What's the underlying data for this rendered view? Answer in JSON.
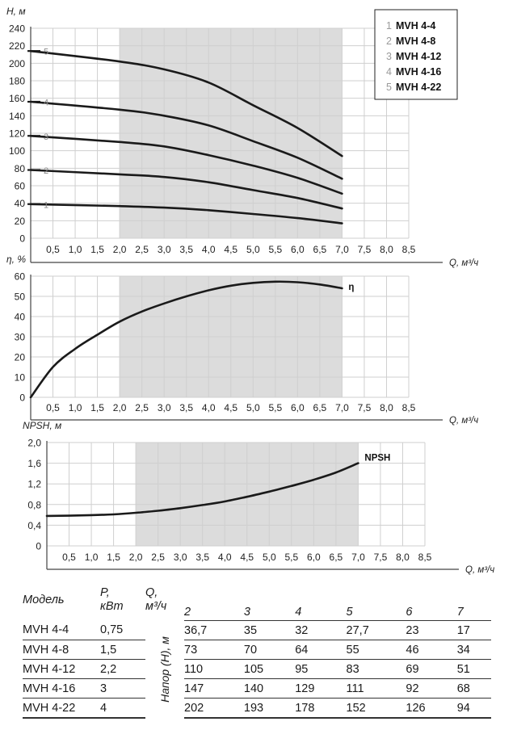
{
  "legend": [
    {
      "num": "1",
      "label": "MVH 4-4"
    },
    {
      "num": "2",
      "label": "MVH 4-8"
    },
    {
      "num": "3",
      "label": "MVH 4-12"
    },
    {
      "num": "4",
      "label": "MVH 4-16"
    },
    {
      "num": "5",
      "label": "MVH 4-22"
    }
  ],
  "chart_data": [
    {
      "type": "line",
      "ylabel": "H, м",
      "xlabel": "Q, м³/ч",
      "xlim": [
        0,
        8.5
      ],
      "ylim": [
        0,
        240
      ],
      "x_ticks": [
        "0,5",
        "1,0",
        "1,5",
        "2,0",
        "2,5",
        "3,0",
        "3,5",
        "4,0",
        "4,5",
        "5,0",
        "5,5",
        "6,0",
        "6,5",
        "7,0",
        "7,5",
        "8,0",
        "8,5"
      ],
      "y_ticks": [
        "0",
        "20",
        "40",
        "60",
        "80",
        "100",
        "120",
        "140",
        "160",
        "180",
        "200",
        "220",
        "240"
      ],
      "shaded_range": [
        2,
        7
      ],
      "grid": true,
      "series": [
        {
          "name": "1",
          "x": [
            0,
            2,
            3,
            4,
            5,
            6,
            7
          ],
          "values": [
            39,
            36.7,
            35,
            32,
            27.7,
            23,
            17
          ]
        },
        {
          "name": "2",
          "x": [
            0,
            2,
            3,
            4,
            5,
            6,
            7
          ],
          "values": [
            78,
            73,
            70,
            64,
            55,
            46,
            34
          ]
        },
        {
          "name": "3",
          "x": [
            0,
            2,
            3,
            4,
            5,
            6,
            7
          ],
          "values": [
            117,
            110,
            105,
            95,
            83,
            69,
            51
          ]
        },
        {
          "name": "4",
          "x": [
            0,
            2,
            3,
            4,
            5,
            6,
            7
          ],
          "values": [
            156,
            147,
            140,
            129,
            111,
            92,
            68
          ]
        },
        {
          "name": "5",
          "x": [
            0,
            2,
            3,
            4,
            5,
            6,
            7
          ],
          "values": [
            214,
            202,
            193,
            178,
            152,
            126,
            94
          ]
        }
      ]
    },
    {
      "type": "line",
      "ylabel": "η, %",
      "xlabel": "Q, м³/ч",
      "xlim": [
        0,
        8.5
      ],
      "ylim": [
        0,
        60
      ],
      "x_ticks": [
        "0,5",
        "1,0",
        "1,5",
        "2,0",
        "2,5",
        "3,0",
        "3,5",
        "4,0",
        "4,5",
        "5,0",
        "5,5",
        "6,0",
        "6,5",
        "7,0",
        "7,5",
        "8,0",
        "8,5"
      ],
      "y_ticks": [
        "0",
        "10",
        "20",
        "30",
        "40",
        "50",
        "60"
      ],
      "shaded_range": [
        2,
        7
      ],
      "grid": true,
      "series": [
        {
          "name": "η",
          "x": [
            0,
            0.5,
            1,
            1.5,
            2,
            2.5,
            3,
            3.5,
            4,
            4.5,
            5,
            5.5,
            6,
            6.5,
            7
          ],
          "values": [
            0,
            15,
            24,
            31,
            37.5,
            42.5,
            46.5,
            50,
            53,
            55.3,
            56.7,
            57.3,
            57,
            55.9,
            54
          ]
        }
      ]
    },
    {
      "type": "line",
      "ylabel": "NPSH, м",
      "xlabel": "Q, м³/ч",
      "xlim": [
        0,
        8.5
      ],
      "ylim": [
        0,
        2.0
      ],
      "x_ticks": [
        "0,5",
        "1,0",
        "1,5",
        "2,0",
        "2,5",
        "3,0",
        "3,5",
        "4,0",
        "4,5",
        "5,0",
        "5,5",
        "6,0",
        "6,5",
        "7,0",
        "7,5",
        "8,0",
        "8,5"
      ],
      "y_ticks": [
        "0",
        "0,4",
        "0,8",
        "1,2",
        "1,6",
        "2,0"
      ],
      "shaded_range": [
        2,
        7
      ],
      "grid": true,
      "series": [
        {
          "name": "NPSH",
          "x": [
            0,
            0.5,
            1,
            1.5,
            2,
            2.5,
            3,
            3.5,
            4,
            4.5,
            5,
            5.5,
            6,
            6.5,
            7
          ],
          "values": [
            0.58,
            0.585,
            0.595,
            0.61,
            0.64,
            0.68,
            0.73,
            0.79,
            0.86,
            0.95,
            1.05,
            1.16,
            1.28,
            1.42,
            1.6
          ]
        }
      ]
    }
  ],
  "table": {
    "headers": {
      "model": "Модель",
      "power": "P,",
      "power_unit": "кВт",
      "flow": "Q,",
      "flow_unit": "м³/ч",
      "head_caption": "Напор (H), м"
    },
    "flow_columns": [
      "2",
      "3",
      "4",
      "5",
      "6",
      "7"
    ],
    "rows": [
      {
        "model": "MVH 4-4",
        "power": "0,75",
        "values": [
          "36,7",
          "35",
          "32",
          "27,7",
          "23",
          "17"
        ]
      },
      {
        "model": "MVH 4-8",
        "power": "1,5",
        "values": [
          "73",
          "70",
          "64",
          "55",
          "46",
          "34"
        ]
      },
      {
        "model": "MVH 4-12",
        "power": "2,2",
        "values": [
          "110",
          "105",
          "95",
          "83",
          "69",
          "51"
        ]
      },
      {
        "model": "MVH 4-16",
        "power": "3",
        "values": [
          "147",
          "140",
          "129",
          "111",
          "92",
          "68"
        ]
      },
      {
        "model": "MVH 4-22",
        "power": "4",
        "values": [
          "202",
          "193",
          "178",
          "152",
          "126",
          "94"
        ]
      }
    ]
  }
}
